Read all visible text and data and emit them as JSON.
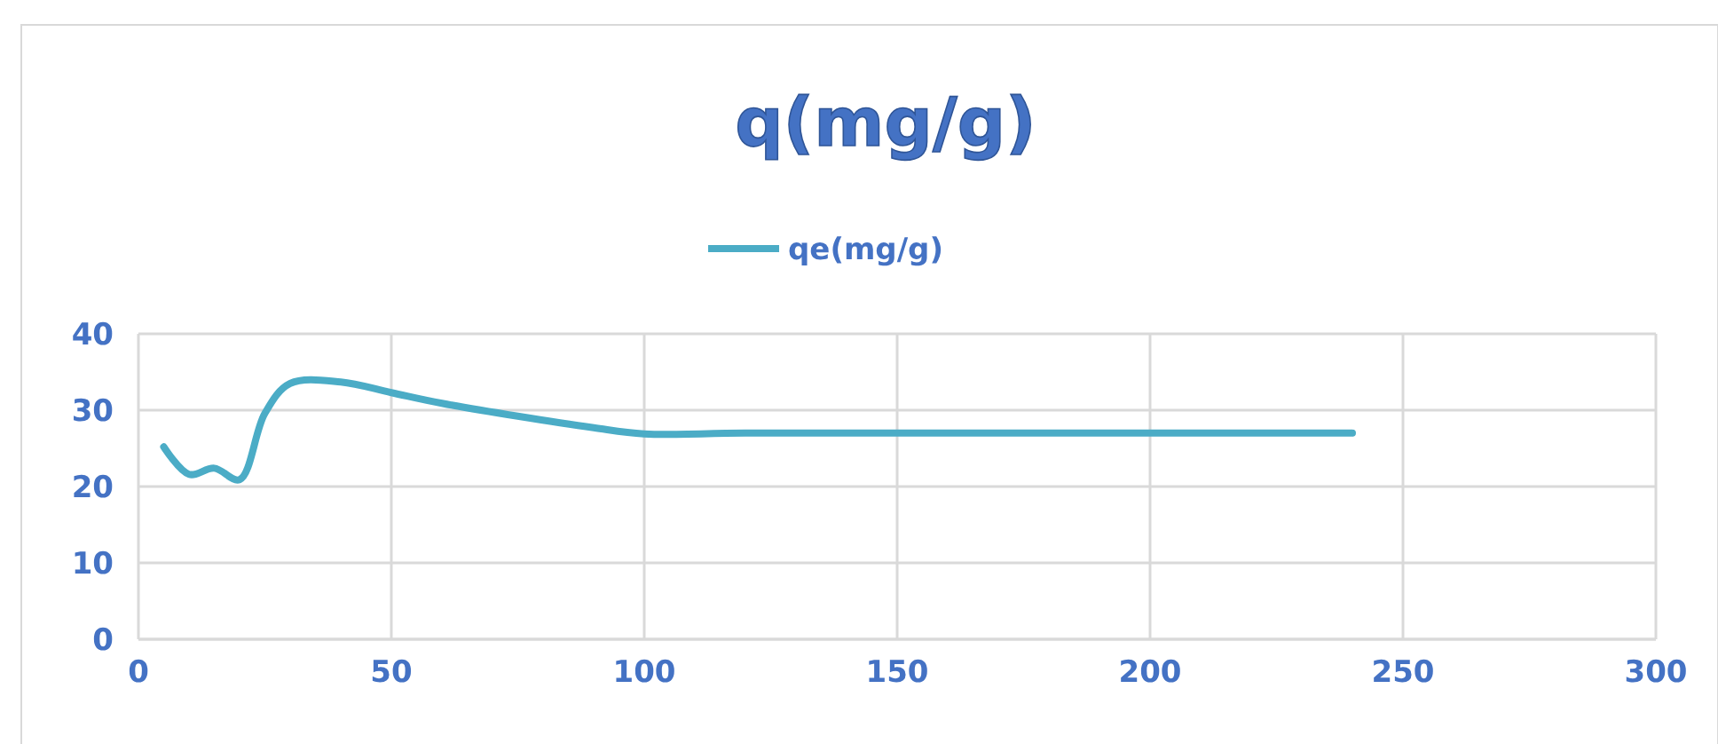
{
  "chart_data": {
    "type": "line",
    "title": "q(mg/g)",
    "x": [
      5,
      10,
      15,
      20,
      25,
      30,
      40,
      50,
      60,
      90,
      100,
      120,
      180,
      240
    ],
    "series": [
      {
        "name": "qe(mg/g)",
        "color": "#4bacc6",
        "values": [
          25.2,
          21.6,
          22.4,
          20.9,
          29.6,
          33.5,
          33.7,
          32.3,
          30.9,
          27.7,
          26.9,
          27,
          27,
          27
        ]
      }
    ],
    "xlim": [
      0,
      300
    ],
    "xticks": [
      0,
      50,
      100,
      150,
      200,
      250,
      300
    ],
    "ylim": [
      0,
      40
    ],
    "yticks": [
      0,
      10,
      20,
      30,
      40
    ],
    "grid": true,
    "legend": "top",
    "marker": "none",
    "line_style": "solid"
  }
}
